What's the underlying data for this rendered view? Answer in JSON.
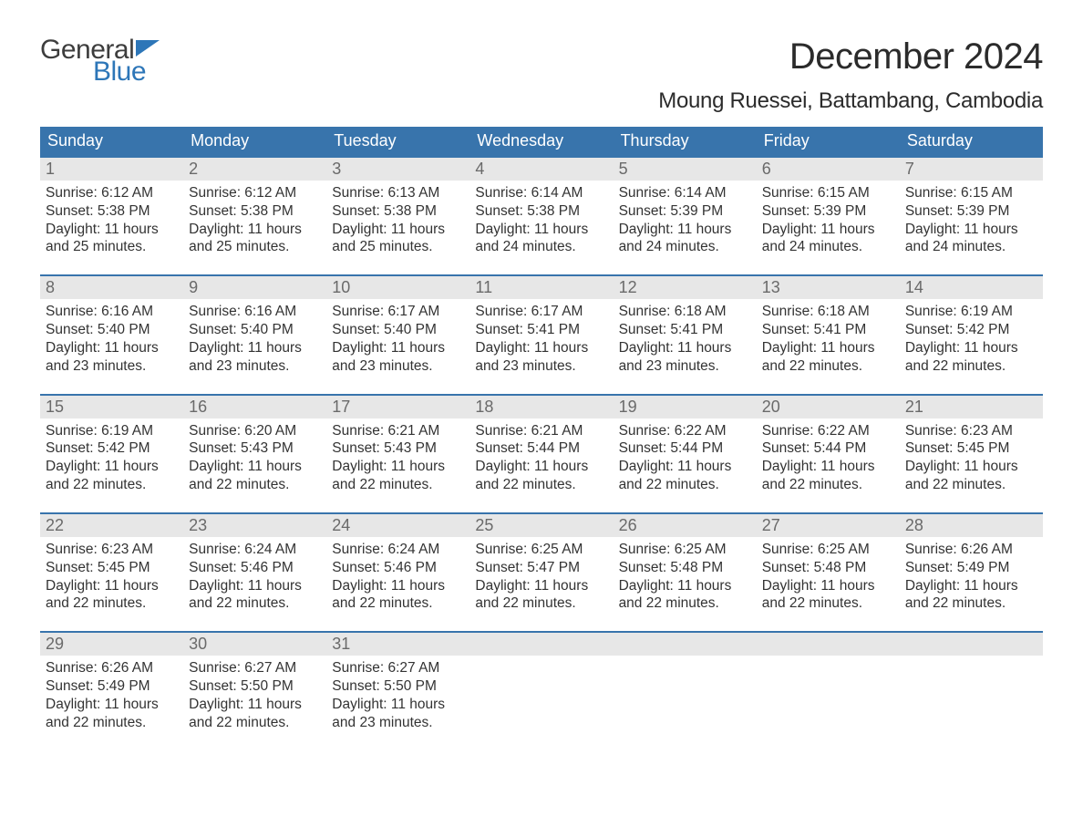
{
  "brand": {
    "word1": "General",
    "word2": "Blue",
    "color1": "#3d3d3d",
    "color2": "#2d76b8"
  },
  "title": "December 2024",
  "location": "Moung Ruessei, Battambang, Cambodia",
  "colors": {
    "header_bg": "#3874ac",
    "header_text": "#ffffff",
    "daynum_bg": "#e7e7e7",
    "daynum_text": "#6a6a6a",
    "body_text": "#333333",
    "week_border": "#3874ac",
    "page_bg": "#ffffff"
  },
  "daysOfWeek": [
    "Sunday",
    "Monday",
    "Tuesday",
    "Wednesday",
    "Thursday",
    "Friday",
    "Saturday"
  ],
  "weeks": [
    [
      {
        "n": "1",
        "sr": "Sunrise: 6:12 AM",
        "ss": "Sunset: 5:38 PM",
        "d1": "Daylight: 11 hours",
        "d2": "and 25 minutes."
      },
      {
        "n": "2",
        "sr": "Sunrise: 6:12 AM",
        "ss": "Sunset: 5:38 PM",
        "d1": "Daylight: 11 hours",
        "d2": "and 25 minutes."
      },
      {
        "n": "3",
        "sr": "Sunrise: 6:13 AM",
        "ss": "Sunset: 5:38 PM",
        "d1": "Daylight: 11 hours",
        "d2": "and 25 minutes."
      },
      {
        "n": "4",
        "sr": "Sunrise: 6:14 AM",
        "ss": "Sunset: 5:38 PM",
        "d1": "Daylight: 11 hours",
        "d2": "and 24 minutes."
      },
      {
        "n": "5",
        "sr": "Sunrise: 6:14 AM",
        "ss": "Sunset: 5:39 PM",
        "d1": "Daylight: 11 hours",
        "d2": "and 24 minutes."
      },
      {
        "n": "6",
        "sr": "Sunrise: 6:15 AM",
        "ss": "Sunset: 5:39 PM",
        "d1": "Daylight: 11 hours",
        "d2": "and 24 minutes."
      },
      {
        "n": "7",
        "sr": "Sunrise: 6:15 AM",
        "ss": "Sunset: 5:39 PM",
        "d1": "Daylight: 11 hours",
        "d2": "and 24 minutes."
      }
    ],
    [
      {
        "n": "8",
        "sr": "Sunrise: 6:16 AM",
        "ss": "Sunset: 5:40 PM",
        "d1": "Daylight: 11 hours",
        "d2": "and 23 minutes."
      },
      {
        "n": "9",
        "sr": "Sunrise: 6:16 AM",
        "ss": "Sunset: 5:40 PM",
        "d1": "Daylight: 11 hours",
        "d2": "and 23 minutes."
      },
      {
        "n": "10",
        "sr": "Sunrise: 6:17 AM",
        "ss": "Sunset: 5:40 PM",
        "d1": "Daylight: 11 hours",
        "d2": "and 23 minutes."
      },
      {
        "n": "11",
        "sr": "Sunrise: 6:17 AM",
        "ss": "Sunset: 5:41 PM",
        "d1": "Daylight: 11 hours",
        "d2": "and 23 minutes."
      },
      {
        "n": "12",
        "sr": "Sunrise: 6:18 AM",
        "ss": "Sunset: 5:41 PM",
        "d1": "Daylight: 11 hours",
        "d2": "and 23 minutes."
      },
      {
        "n": "13",
        "sr": "Sunrise: 6:18 AM",
        "ss": "Sunset: 5:41 PM",
        "d1": "Daylight: 11 hours",
        "d2": "and 22 minutes."
      },
      {
        "n": "14",
        "sr": "Sunrise: 6:19 AM",
        "ss": "Sunset: 5:42 PM",
        "d1": "Daylight: 11 hours",
        "d2": "and 22 minutes."
      }
    ],
    [
      {
        "n": "15",
        "sr": "Sunrise: 6:19 AM",
        "ss": "Sunset: 5:42 PM",
        "d1": "Daylight: 11 hours",
        "d2": "and 22 minutes."
      },
      {
        "n": "16",
        "sr": "Sunrise: 6:20 AM",
        "ss": "Sunset: 5:43 PM",
        "d1": "Daylight: 11 hours",
        "d2": "and 22 minutes."
      },
      {
        "n": "17",
        "sr": "Sunrise: 6:21 AM",
        "ss": "Sunset: 5:43 PM",
        "d1": "Daylight: 11 hours",
        "d2": "and 22 minutes."
      },
      {
        "n": "18",
        "sr": "Sunrise: 6:21 AM",
        "ss": "Sunset: 5:44 PM",
        "d1": "Daylight: 11 hours",
        "d2": "and 22 minutes."
      },
      {
        "n": "19",
        "sr": "Sunrise: 6:22 AM",
        "ss": "Sunset: 5:44 PM",
        "d1": "Daylight: 11 hours",
        "d2": "and 22 minutes."
      },
      {
        "n": "20",
        "sr": "Sunrise: 6:22 AM",
        "ss": "Sunset: 5:44 PM",
        "d1": "Daylight: 11 hours",
        "d2": "and 22 minutes."
      },
      {
        "n": "21",
        "sr": "Sunrise: 6:23 AM",
        "ss": "Sunset: 5:45 PM",
        "d1": "Daylight: 11 hours",
        "d2": "and 22 minutes."
      }
    ],
    [
      {
        "n": "22",
        "sr": "Sunrise: 6:23 AM",
        "ss": "Sunset: 5:45 PM",
        "d1": "Daylight: 11 hours",
        "d2": "and 22 minutes."
      },
      {
        "n": "23",
        "sr": "Sunrise: 6:24 AM",
        "ss": "Sunset: 5:46 PM",
        "d1": "Daylight: 11 hours",
        "d2": "and 22 minutes."
      },
      {
        "n": "24",
        "sr": "Sunrise: 6:24 AM",
        "ss": "Sunset: 5:46 PM",
        "d1": "Daylight: 11 hours",
        "d2": "and 22 minutes."
      },
      {
        "n": "25",
        "sr": "Sunrise: 6:25 AM",
        "ss": "Sunset: 5:47 PM",
        "d1": "Daylight: 11 hours",
        "d2": "and 22 minutes."
      },
      {
        "n": "26",
        "sr": "Sunrise: 6:25 AM",
        "ss": "Sunset: 5:48 PM",
        "d1": "Daylight: 11 hours",
        "d2": "and 22 minutes."
      },
      {
        "n": "27",
        "sr": "Sunrise: 6:25 AM",
        "ss": "Sunset: 5:48 PM",
        "d1": "Daylight: 11 hours",
        "d2": "and 22 minutes."
      },
      {
        "n": "28",
        "sr": "Sunrise: 6:26 AM",
        "ss": "Sunset: 5:49 PM",
        "d1": "Daylight: 11 hours",
        "d2": "and 22 minutes."
      }
    ],
    [
      {
        "n": "29",
        "sr": "Sunrise: 6:26 AM",
        "ss": "Sunset: 5:49 PM",
        "d1": "Daylight: 11 hours",
        "d2": "and 22 minutes."
      },
      {
        "n": "30",
        "sr": "Sunrise: 6:27 AM",
        "ss": "Sunset: 5:50 PM",
        "d1": "Daylight: 11 hours",
        "d2": "and 22 minutes."
      },
      {
        "n": "31",
        "sr": "Sunrise: 6:27 AM",
        "ss": "Sunset: 5:50 PM",
        "d1": "Daylight: 11 hours",
        "d2": "and 23 minutes."
      },
      null,
      null,
      null,
      null
    ]
  ]
}
